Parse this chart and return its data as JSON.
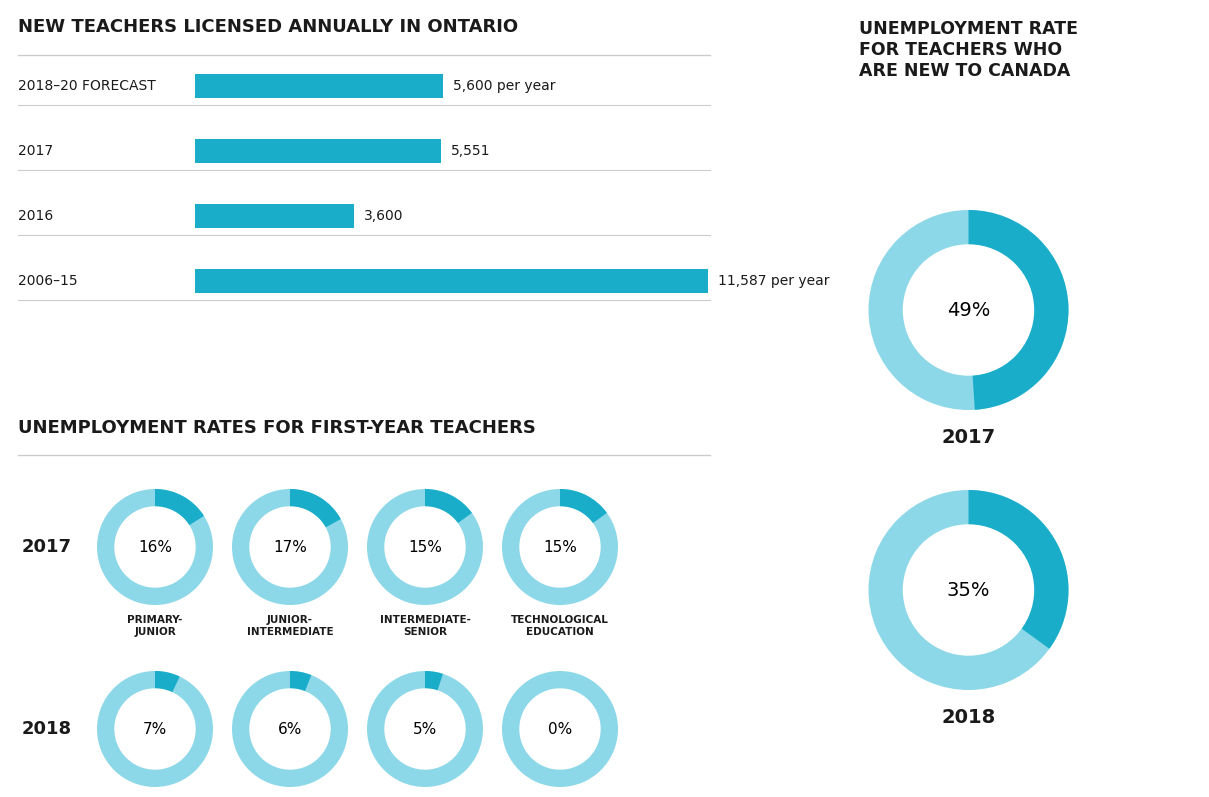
{
  "title_bar": "NEW TEACHERS LICENSED ANNUALLY IN ONTARIO",
  "bar_labels": [
    "2018–20 FORECAST",
    "2017",
    "2016",
    "2006–15"
  ],
  "bar_values": [
    5600,
    5551,
    3600,
    11587
  ],
  "bar_max": 11587,
  "bar_labels_text": [
    "5,600 per year",
    "5,551",
    "3,600",
    "11,587 per year"
  ],
  "bar_color": "#1aadca",
  "title_first_year": "UNEMPLOYMENT RATES FOR FIRST-YEAR TEACHERS",
  "categories_2017": [
    "16%",
    "17%",
    "15%",
    "15%"
  ],
  "categories_2018": [
    "7%",
    "6%",
    "5%",
    "0%"
  ],
  "cat_labels": [
    "PRIMARY-\nJUNIOR",
    "JUNIOR-\nINTERMEDIATE",
    "INTERMEDIATE-\nSENIOR",
    "TECHNOLOGICAL\nEDUCATION"
  ],
  "donut_values_2017": [
    16,
    17,
    15,
    15
  ],
  "donut_values_2018": [
    7,
    6,
    5,
    0
  ],
  "title_canada": "UNEMPLOYMENT RATE\nFOR TEACHERS WHO\nARE NEW TO CANADA",
  "canada_2017": 49,
  "canada_2018": 35,
  "canada_bg": "#daeef5",
  "donut_light": "#8dd8e8",
  "donut_dark": "#1aadca",
  "donut_white": "#ffffff",
  "text_color": "#1a1a1a",
  "bg_color": "#ffffff",
  "line_color": "#cccccc"
}
